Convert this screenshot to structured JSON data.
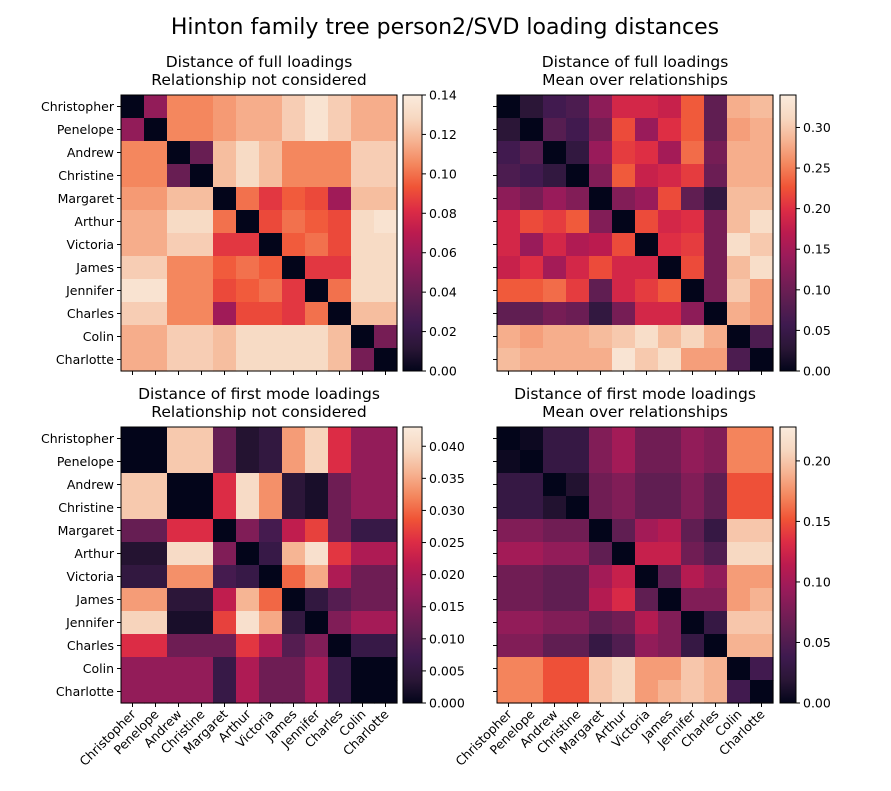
{
  "title": "Hinton family tree person2/SVD loading distances",
  "names": [
    "Christopher",
    "Penelope",
    "Andrew",
    "Christine",
    "Margaret",
    "Arthur",
    "Victoria",
    "James",
    "Jennifer",
    "Charles",
    "Colin",
    "Charlotte"
  ],
  "colormap": [
    "#03051a",
    "#2a1636",
    "#3e1a4f",
    "#5b1e51",
    "#7a1d56",
    "#9b1b5a",
    "#bb1b4f",
    "#dd2c45",
    "#f05436",
    "#f4875e",
    "#f6b392",
    "#f7d8c1",
    "#faebdd"
  ],
  "chart_data": [
    {
      "type": "heatmap",
      "title_lines": [
        "Distance of full loadings",
        "Relationship not considered"
      ],
      "categories": [
        "Christopher",
        "Penelope",
        "Andrew",
        "Christine",
        "Margaret",
        "Arthur",
        "Victoria",
        "James",
        "Jennifer",
        "Charles",
        "Colin",
        "Charlotte"
      ],
      "vmin": 0,
      "vmax": 0.14,
      "colorbar_ticks": [
        "0.00",
        "0.02",
        "0.04",
        "0.06",
        "0.08",
        "0.10",
        "0.12",
        "0.14"
      ],
      "show_y_labels": true,
      "show_x_labels": false,
      "values": [
        [
          0.0,
          0.055,
          0.105,
          0.105,
          0.11,
          0.115,
          0.115,
          0.125,
          0.135,
          0.125,
          0.115,
          0.115
        ],
        [
          0.055,
          0.0,
          0.105,
          0.105,
          0.11,
          0.115,
          0.115,
          0.125,
          0.135,
          0.125,
          0.115,
          0.115
        ],
        [
          0.105,
          0.105,
          0.0,
          0.04,
          0.12,
          0.13,
          0.12,
          0.105,
          0.105,
          0.105,
          0.125,
          0.125
        ],
        [
          0.105,
          0.105,
          0.04,
          0.0,
          0.12,
          0.13,
          0.12,
          0.105,
          0.105,
          0.105,
          0.125,
          0.125
        ],
        [
          0.11,
          0.11,
          0.12,
          0.12,
          0.0,
          0.1,
          0.085,
          0.095,
          0.09,
          0.06,
          0.12,
          0.12
        ],
        [
          0.115,
          0.115,
          0.13,
          0.13,
          0.1,
          0.0,
          0.09,
          0.1,
          0.095,
          0.09,
          0.13,
          0.135
        ],
        [
          0.115,
          0.115,
          0.125,
          0.125,
          0.085,
          0.085,
          0.0,
          0.095,
          0.1,
          0.09,
          0.13,
          0.13
        ],
        [
          0.125,
          0.125,
          0.105,
          0.105,
          0.095,
          0.1,
          0.095,
          0.0,
          0.085,
          0.085,
          0.13,
          0.13
        ],
        [
          0.135,
          0.135,
          0.105,
          0.105,
          0.09,
          0.095,
          0.1,
          0.085,
          0.0,
          0.1,
          0.13,
          0.13
        ],
        [
          0.125,
          0.125,
          0.105,
          0.105,
          0.06,
          0.09,
          0.09,
          0.085,
          0.1,
          0.0,
          0.12,
          0.12
        ],
        [
          0.115,
          0.115,
          0.125,
          0.125,
          0.12,
          0.13,
          0.13,
          0.13,
          0.13,
          0.12,
          0.0,
          0.045
        ],
        [
          0.115,
          0.115,
          0.125,
          0.125,
          0.12,
          0.13,
          0.13,
          0.13,
          0.13,
          0.12,
          0.045,
          0.0
        ]
      ]
    },
    {
      "type": "heatmap",
      "title_lines": [
        "Distance of full loadings",
        "Mean over relationships"
      ],
      "categories": [
        "Christopher",
        "Penelope",
        "Andrew",
        "Christine",
        "Margaret",
        "Arthur",
        "Victoria",
        "James",
        "Jennifer",
        "Charles",
        "Colin",
        "Charlotte"
      ],
      "vmin": 0,
      "vmax": 0.34,
      "colorbar_ticks": [
        "0.00",
        "0.05",
        "0.10",
        "0.15",
        "0.20",
        "0.25",
        "0.30"
      ],
      "show_y_labels": false,
      "show_x_labels": false,
      "values": [
        [
          0.0,
          0.03,
          0.06,
          0.07,
          0.13,
          0.19,
          0.19,
          0.18,
          0.23,
          0.09,
          0.28,
          0.29
        ],
        [
          0.03,
          0.0,
          0.08,
          0.06,
          0.11,
          0.22,
          0.14,
          0.2,
          0.23,
          0.09,
          0.27,
          0.28
        ],
        [
          0.06,
          0.08,
          0.0,
          0.04,
          0.14,
          0.21,
          0.2,
          0.15,
          0.24,
          0.11,
          0.28,
          0.28
        ],
        [
          0.07,
          0.06,
          0.04,
          0.0,
          0.12,
          0.23,
          0.18,
          0.19,
          0.21,
          0.1,
          0.28,
          0.28
        ],
        [
          0.13,
          0.11,
          0.14,
          0.12,
          0.0,
          0.12,
          0.14,
          0.22,
          0.09,
          0.04,
          0.29,
          0.29
        ],
        [
          0.19,
          0.22,
          0.21,
          0.23,
          0.12,
          0.0,
          0.22,
          0.19,
          0.2,
          0.11,
          0.29,
          0.32
        ],
        [
          0.19,
          0.14,
          0.19,
          0.16,
          0.17,
          0.22,
          0.0,
          0.2,
          0.21,
          0.11,
          0.32,
          0.3
        ],
        [
          0.18,
          0.2,
          0.15,
          0.19,
          0.22,
          0.19,
          0.19,
          0.0,
          0.22,
          0.11,
          0.29,
          0.32
        ],
        [
          0.23,
          0.23,
          0.24,
          0.21,
          0.09,
          0.19,
          0.21,
          0.23,
          0.0,
          0.11,
          0.3,
          0.27
        ],
        [
          0.09,
          0.09,
          0.11,
          0.1,
          0.04,
          0.11,
          0.19,
          0.19,
          0.13,
          0.0,
          0.28,
          0.27
        ],
        [
          0.28,
          0.27,
          0.28,
          0.28,
          0.29,
          0.3,
          0.32,
          0.29,
          0.31,
          0.28,
          0.0,
          0.07
        ],
        [
          0.29,
          0.28,
          0.28,
          0.28,
          0.28,
          0.33,
          0.3,
          0.32,
          0.27,
          0.27,
          0.07,
          0.0
        ]
      ]
    },
    {
      "type": "heatmap",
      "title_lines": [
        "Distance of first mode loadings",
        "Relationship not considered"
      ],
      "categories": [
        "Christopher",
        "Penelope",
        "Andrew",
        "Christine",
        "Margaret",
        "Arthur",
        "Victoria",
        "James",
        "Jennifer",
        "Charles",
        "Colin",
        "Charlotte"
      ],
      "vmin": 0,
      "vmax": 0.043,
      "colorbar_ticks": [
        "0.000",
        "0.005",
        "0.010",
        "0.015",
        "0.020",
        "0.025",
        "0.030",
        "0.035",
        "0.040"
      ],
      "show_y_labels": true,
      "show_x_labels": true,
      "values": [
        [
          0.0,
          0.0,
          0.038,
          0.038,
          0.012,
          0.003,
          0.005,
          0.034,
          0.039,
          0.025,
          0.017,
          0.017
        ],
        [
          0.0,
          0.0,
          0.038,
          0.038,
          0.012,
          0.003,
          0.005,
          0.034,
          0.039,
          0.025,
          0.017,
          0.017
        ],
        [
          0.038,
          0.038,
          0.0,
          0.0,
          0.025,
          0.04,
          0.033,
          0.004,
          0.002,
          0.013,
          0.017,
          0.017
        ],
        [
          0.038,
          0.038,
          0.0,
          0.0,
          0.025,
          0.04,
          0.033,
          0.004,
          0.002,
          0.013,
          0.017,
          0.017
        ],
        [
          0.012,
          0.012,
          0.025,
          0.025,
          0.0,
          0.015,
          0.008,
          0.022,
          0.027,
          0.013,
          0.006,
          0.006
        ],
        [
          0.003,
          0.003,
          0.04,
          0.04,
          0.015,
          0.0,
          0.006,
          0.036,
          0.041,
          0.026,
          0.02,
          0.02
        ],
        [
          0.005,
          0.005,
          0.033,
          0.033,
          0.008,
          0.006,
          0.0,
          0.03,
          0.035,
          0.02,
          0.013,
          0.013
        ],
        [
          0.034,
          0.034,
          0.004,
          0.004,
          0.022,
          0.036,
          0.03,
          0.0,
          0.005,
          0.01,
          0.013,
          0.013
        ],
        [
          0.039,
          0.039,
          0.002,
          0.002,
          0.027,
          0.041,
          0.035,
          0.005,
          0.0,
          0.015,
          0.019,
          0.019
        ],
        [
          0.025,
          0.025,
          0.013,
          0.013,
          0.013,
          0.026,
          0.02,
          0.01,
          0.015,
          0.0,
          0.006,
          0.006
        ],
        [
          0.017,
          0.017,
          0.017,
          0.017,
          0.006,
          0.02,
          0.013,
          0.013,
          0.019,
          0.006,
          0.0,
          0.0
        ],
        [
          0.017,
          0.017,
          0.017,
          0.017,
          0.006,
          0.02,
          0.013,
          0.013,
          0.019,
          0.006,
          0.0,
          0.0
        ]
      ]
    },
    {
      "type": "heatmap",
      "title_lines": [
        "Distance of first mode loadings",
        "Mean over relationships"
      ],
      "categories": [
        "Christopher",
        "Penelope",
        "Andrew",
        "Christine",
        "Margaret",
        "Arthur",
        "Victoria",
        "James",
        "Jennifer",
        "Charles",
        "Colin",
        "Charlotte"
      ],
      "vmin": 0,
      "vmax": 0.228,
      "colorbar_ticks": [
        "0.00",
        "0.05",
        "0.10",
        "0.15",
        "0.20"
      ],
      "show_y_labels": false,
      "show_x_labels": true,
      "values": [
        [
          0.0,
          0.005,
          0.03,
          0.03,
          0.08,
          0.1,
          0.07,
          0.07,
          0.09,
          0.08,
          0.17,
          0.17
        ],
        [
          0.005,
          0.0,
          0.03,
          0.03,
          0.08,
          0.1,
          0.07,
          0.07,
          0.09,
          0.08,
          0.17,
          0.17
        ],
        [
          0.03,
          0.03,
          0.0,
          0.015,
          0.07,
          0.08,
          0.06,
          0.06,
          0.08,
          0.06,
          0.15,
          0.15
        ],
        [
          0.03,
          0.03,
          0.015,
          0.0,
          0.07,
          0.08,
          0.06,
          0.06,
          0.08,
          0.06,
          0.15,
          0.15
        ],
        [
          0.08,
          0.08,
          0.07,
          0.07,
          0.0,
          0.06,
          0.1,
          0.11,
          0.06,
          0.03,
          0.2,
          0.2
        ],
        [
          0.1,
          0.1,
          0.09,
          0.09,
          0.06,
          0.0,
          0.12,
          0.12,
          0.07,
          0.05,
          0.21,
          0.21
        ],
        [
          0.07,
          0.07,
          0.06,
          0.06,
          0.1,
          0.12,
          0.0,
          0.06,
          0.11,
          0.09,
          0.18,
          0.18
        ],
        [
          0.07,
          0.07,
          0.06,
          0.06,
          0.11,
          0.13,
          0.06,
          0.0,
          0.08,
          0.08,
          0.18,
          0.19
        ],
        [
          0.09,
          0.09,
          0.08,
          0.08,
          0.06,
          0.07,
          0.11,
          0.08,
          0.0,
          0.03,
          0.2,
          0.2
        ],
        [
          0.08,
          0.08,
          0.06,
          0.06,
          0.03,
          0.05,
          0.09,
          0.08,
          0.03,
          0.0,
          0.19,
          0.19
        ],
        [
          0.17,
          0.17,
          0.15,
          0.15,
          0.2,
          0.21,
          0.18,
          0.18,
          0.2,
          0.19,
          0.0,
          0.04
        ],
        [
          0.17,
          0.17,
          0.15,
          0.15,
          0.2,
          0.21,
          0.18,
          0.19,
          0.2,
          0.19,
          0.04,
          0.0
        ]
      ]
    }
  ]
}
